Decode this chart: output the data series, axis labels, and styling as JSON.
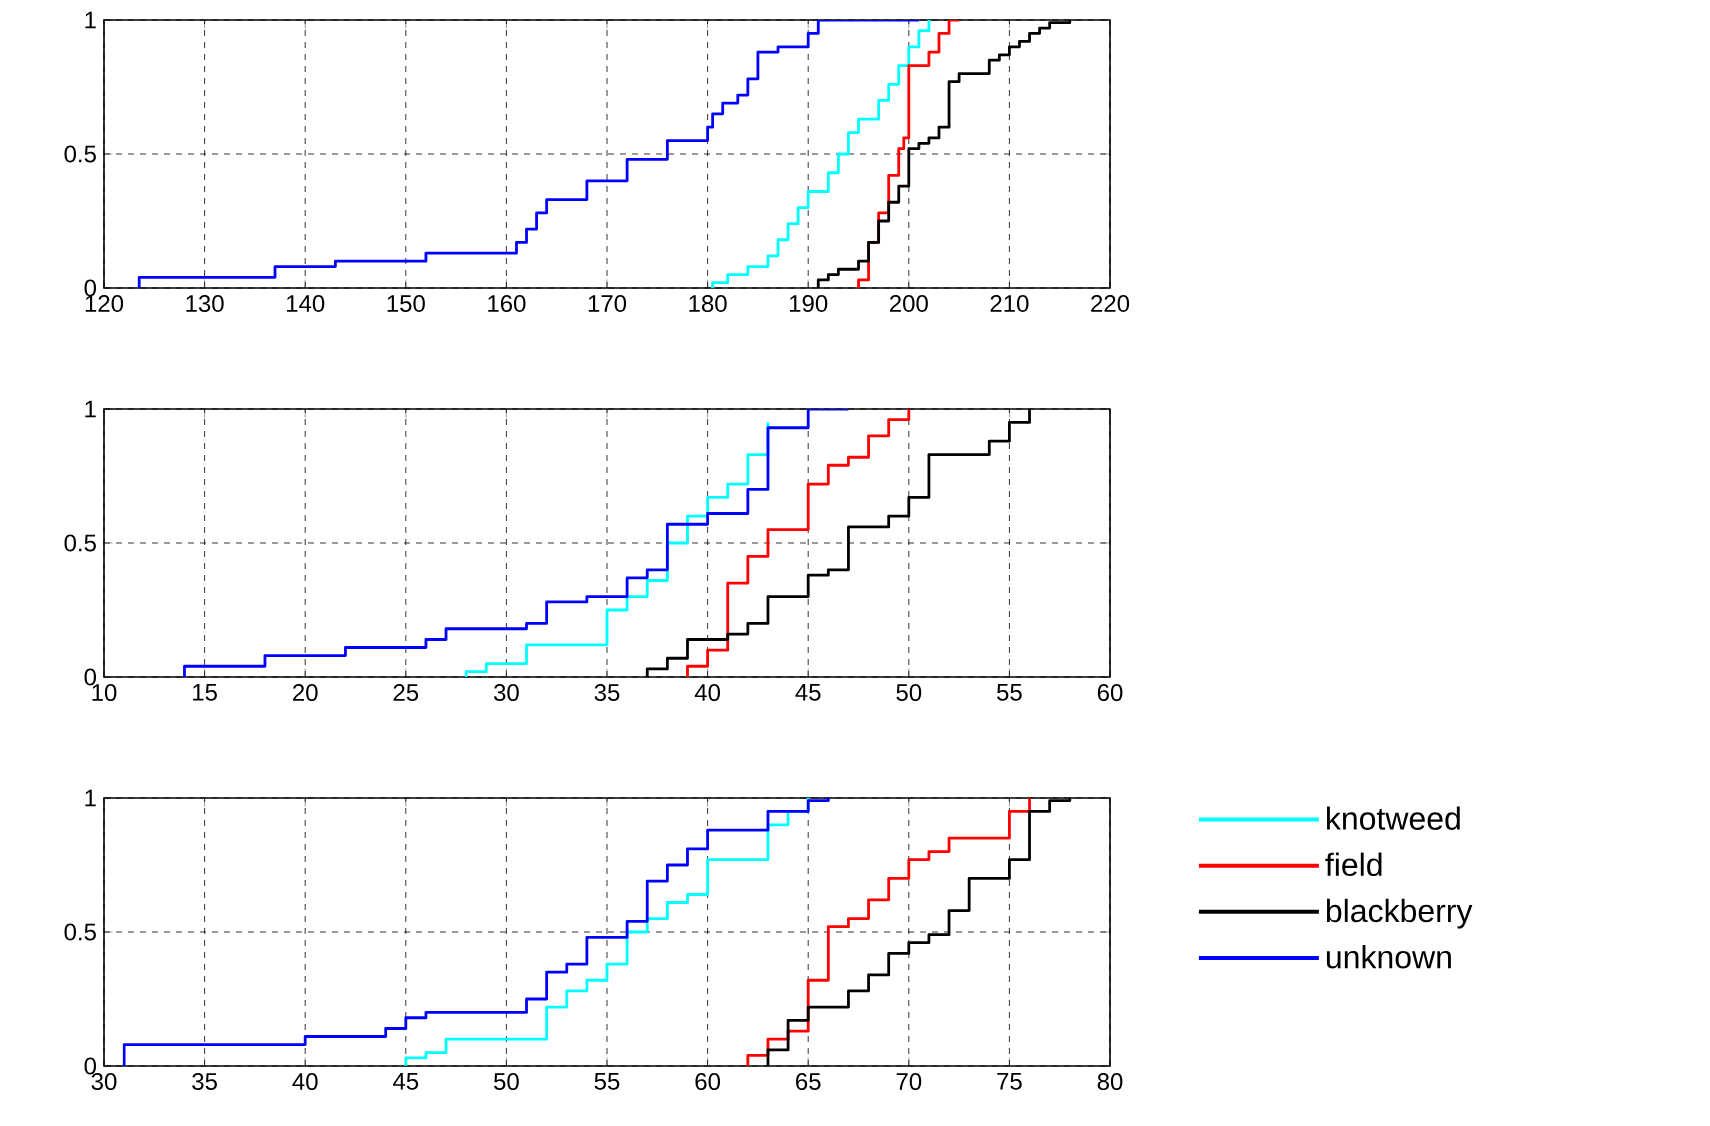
{
  "chart_data": [
    {
      "type": "step",
      "xlim": [
        120,
        220
      ],
      "xticks": [
        120,
        130,
        140,
        150,
        160,
        170,
        180,
        190,
        200,
        210,
        220
      ],
      "ylim": [
        0,
        1
      ],
      "yticks": [
        0,
        0.5,
        1
      ],
      "grid": true,
      "series": [
        {
          "color": "#00ffff",
          "x": [
            180.5,
            180.5,
            182,
            184,
            186,
            187,
            188,
            189,
            190,
            192,
            193,
            194,
            195,
            197,
            198,
            199,
            200,
            201,
            202
          ],
          "values": [
            0,
            0.02,
            0.05,
            0.08,
            0.12,
            0.18,
            0.24,
            0.3,
            0.36,
            0.43,
            0.5,
            0.58,
            0.63,
            0.7,
            0.76,
            0.83,
            0.9,
            0.96,
            1
          ]
        },
        {
          "color": "#ff0000",
          "x": [
            195,
            195,
            196,
            197,
            198,
            199,
            199.5,
            200,
            202,
            203,
            204,
            205
          ],
          "values": [
            0,
            0.03,
            0.17,
            0.28,
            0.42,
            0.52,
            0.56,
            0.83,
            0.88,
            0.95,
            1,
            1
          ]
        },
        {
          "color": "#000000",
          "x": [
            191,
            191,
            192,
            193,
            195,
            196,
            197,
            198,
            199,
            200,
            201,
            202,
            203,
            204,
            205,
            208,
            209,
            210,
            211,
            212,
            213,
            214,
            216
          ],
          "values": [
            0,
            0.03,
            0.05,
            0.07,
            0.1,
            0.17,
            0.25,
            0.32,
            0.38,
            0.52,
            0.54,
            0.56,
            0.6,
            0.77,
            0.8,
            0.85,
            0.87,
            0.9,
            0.92,
            0.95,
            0.97,
            0.99,
            1
          ]
        },
        {
          "color": "#0000ff",
          "x": [
            123.5,
            123.5,
            137,
            143,
            152,
            161,
            162,
            163,
            164,
            168,
            172,
            176,
            180,
            180.5,
            181.5,
            183,
            184,
            185,
            187,
            190,
            191,
            201
          ],
          "values": [
            0,
            0.04,
            0.08,
            0.1,
            0.13,
            0.17,
            0.22,
            0.28,
            0.33,
            0.4,
            0.48,
            0.55,
            0.6,
            0.65,
            0.69,
            0.72,
            0.78,
            0.88,
            0.9,
            0.95,
            1,
            1
          ]
        }
      ]
    },
    {
      "type": "step",
      "xlim": [
        10,
        60
      ],
      "xticks": [
        10,
        15,
        20,
        25,
        30,
        35,
        40,
        45,
        50,
        55,
        60
      ],
      "ylim": [
        0,
        1
      ],
      "yticks": [
        0,
        0.5,
        1
      ],
      "grid": true,
      "series": [
        {
          "color": "#00ffff",
          "x": [
            28,
            28,
            29,
            31,
            35,
            36,
            37,
            38,
            39,
            40,
            41,
            42,
            43
          ],
          "values": [
            0,
            0.02,
            0.05,
            0.12,
            0.25,
            0.3,
            0.36,
            0.5,
            0.6,
            0.67,
            0.72,
            0.83,
            0.95
          ]
        },
        {
          "color": "#ff0000",
          "x": [
            39,
            39,
            40,
            41,
            42,
            43,
            45,
            46,
            47,
            48,
            49,
            50
          ],
          "values": [
            0,
            0.04,
            0.1,
            0.35,
            0.45,
            0.55,
            0.72,
            0.79,
            0.82,
            0.9,
            0.96,
            1
          ]
        },
        {
          "color": "#000000",
          "x": [
            37,
            37,
            38,
            39,
            41,
            42,
            43,
            45,
            46,
            47,
            49,
            50,
            51,
            54,
            55,
            56
          ],
          "values": [
            0,
            0.03,
            0.07,
            0.14,
            0.16,
            0.2,
            0.3,
            0.38,
            0.4,
            0.56,
            0.6,
            0.67,
            0.83,
            0.88,
            0.95,
            1
          ]
        },
        {
          "color": "#0000ff",
          "x": [
            14,
            14,
            18,
            22,
            26,
            27,
            31,
            32,
            34,
            36,
            37,
            38,
            40,
            42,
            43,
            45,
            47
          ],
          "values": [
            0,
            0.04,
            0.08,
            0.11,
            0.14,
            0.18,
            0.2,
            0.28,
            0.3,
            0.37,
            0.4,
            0.57,
            0.61,
            0.7,
            0.93,
            1,
            1
          ]
        }
      ]
    },
    {
      "type": "step",
      "xlim": [
        30,
        80
      ],
      "xticks": [
        30,
        35,
        40,
        45,
        50,
        55,
        60,
        65,
        70,
        75,
        80
      ],
      "ylim": [
        0,
        1
      ],
      "yticks": [
        0,
        0.5,
        1
      ],
      "grid": true,
      "legend": "right",
      "series": [
        {
          "name": "knotweed",
          "color": "#00ffff",
          "x": [
            45,
            45,
            46,
            47,
            52,
            53,
            54,
            55,
            56,
            57,
            58,
            59,
            60,
            63,
            64,
            65
          ],
          "values": [
            0,
            0.03,
            0.05,
            0.1,
            0.22,
            0.28,
            0.32,
            0.38,
            0.5,
            0.55,
            0.61,
            0.64,
            0.77,
            0.9,
            0.95,
            1
          ]
        },
        {
          "name": "field",
          "color": "#ff0000",
          "x": [
            62,
            62,
            63,
            64,
            65,
            66,
            67,
            68,
            69,
            70,
            71,
            72,
            75,
            76
          ],
          "values": [
            0,
            0.04,
            0.1,
            0.13,
            0.32,
            0.52,
            0.55,
            0.62,
            0.7,
            0.77,
            0.8,
            0.85,
            0.95,
            1
          ]
        },
        {
          "name": "blackberry",
          "color": "#000000",
          "x": [
            63,
            63,
            64,
            65,
            67,
            68,
            69,
            70,
            71,
            72,
            73,
            75,
            76,
            77,
            78
          ],
          "values": [
            0,
            0.06,
            0.17,
            0.22,
            0.28,
            0.34,
            0.42,
            0.46,
            0.49,
            0.58,
            0.7,
            0.77,
            0.95,
            0.99,
            1
          ]
        },
        {
          "name": "unknown",
          "color": "#0000ff",
          "x": [
            31,
            31,
            40,
            44,
            45,
            46,
            51,
            52,
            53,
            54,
            56,
            57,
            58,
            59,
            60,
            63,
            65,
            66
          ],
          "values": [
            0,
            0.08,
            0.11,
            0.14,
            0.18,
            0.2,
            0.25,
            0.35,
            0.38,
            0.48,
            0.54,
            0.69,
            0.75,
            0.81,
            0.88,
            0.95,
            0.99,
            1
          ]
        }
      ]
    }
  ]
}
